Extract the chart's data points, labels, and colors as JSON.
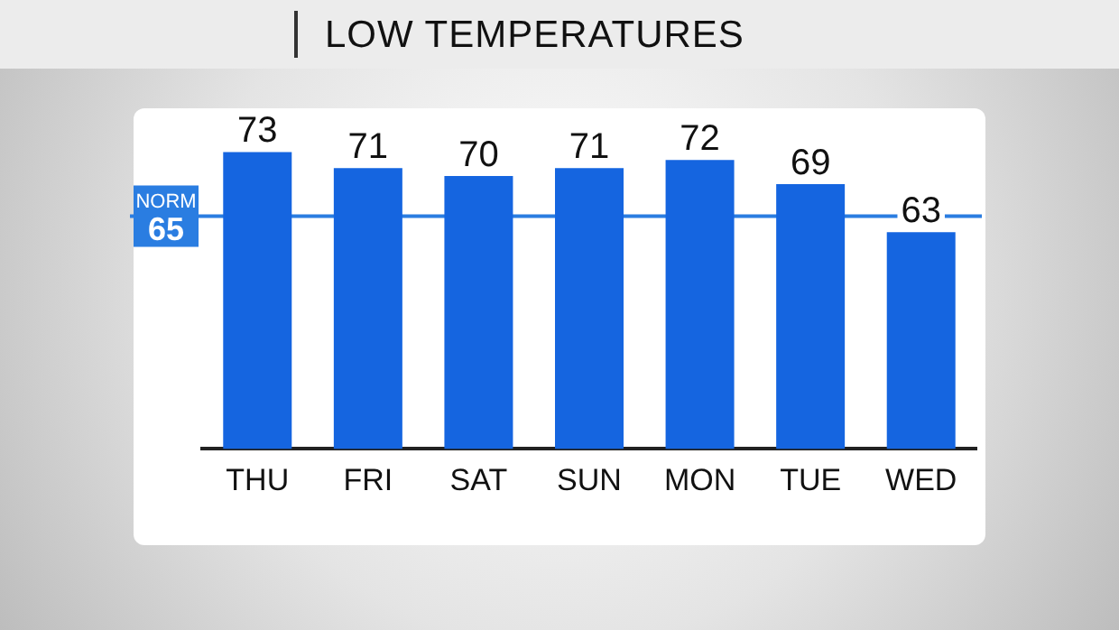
{
  "chart_data": {
    "type": "bar",
    "title": "LOW TEMPERATURES",
    "categories": [
      "THU",
      "FRI",
      "SAT",
      "SUN",
      "MON",
      "TUE",
      "WED"
    ],
    "values": [
      73,
      71,
      70,
      71,
      72,
      69,
      63
    ],
    "color": "#1565e0",
    "ylim": [
      36,
      78
    ],
    "data_labels": true,
    "ref_lines": [
      {
        "axis": "y",
        "value": 65,
        "label": "NORM 65",
        "color": "#2a7de1"
      }
    ]
  }
}
